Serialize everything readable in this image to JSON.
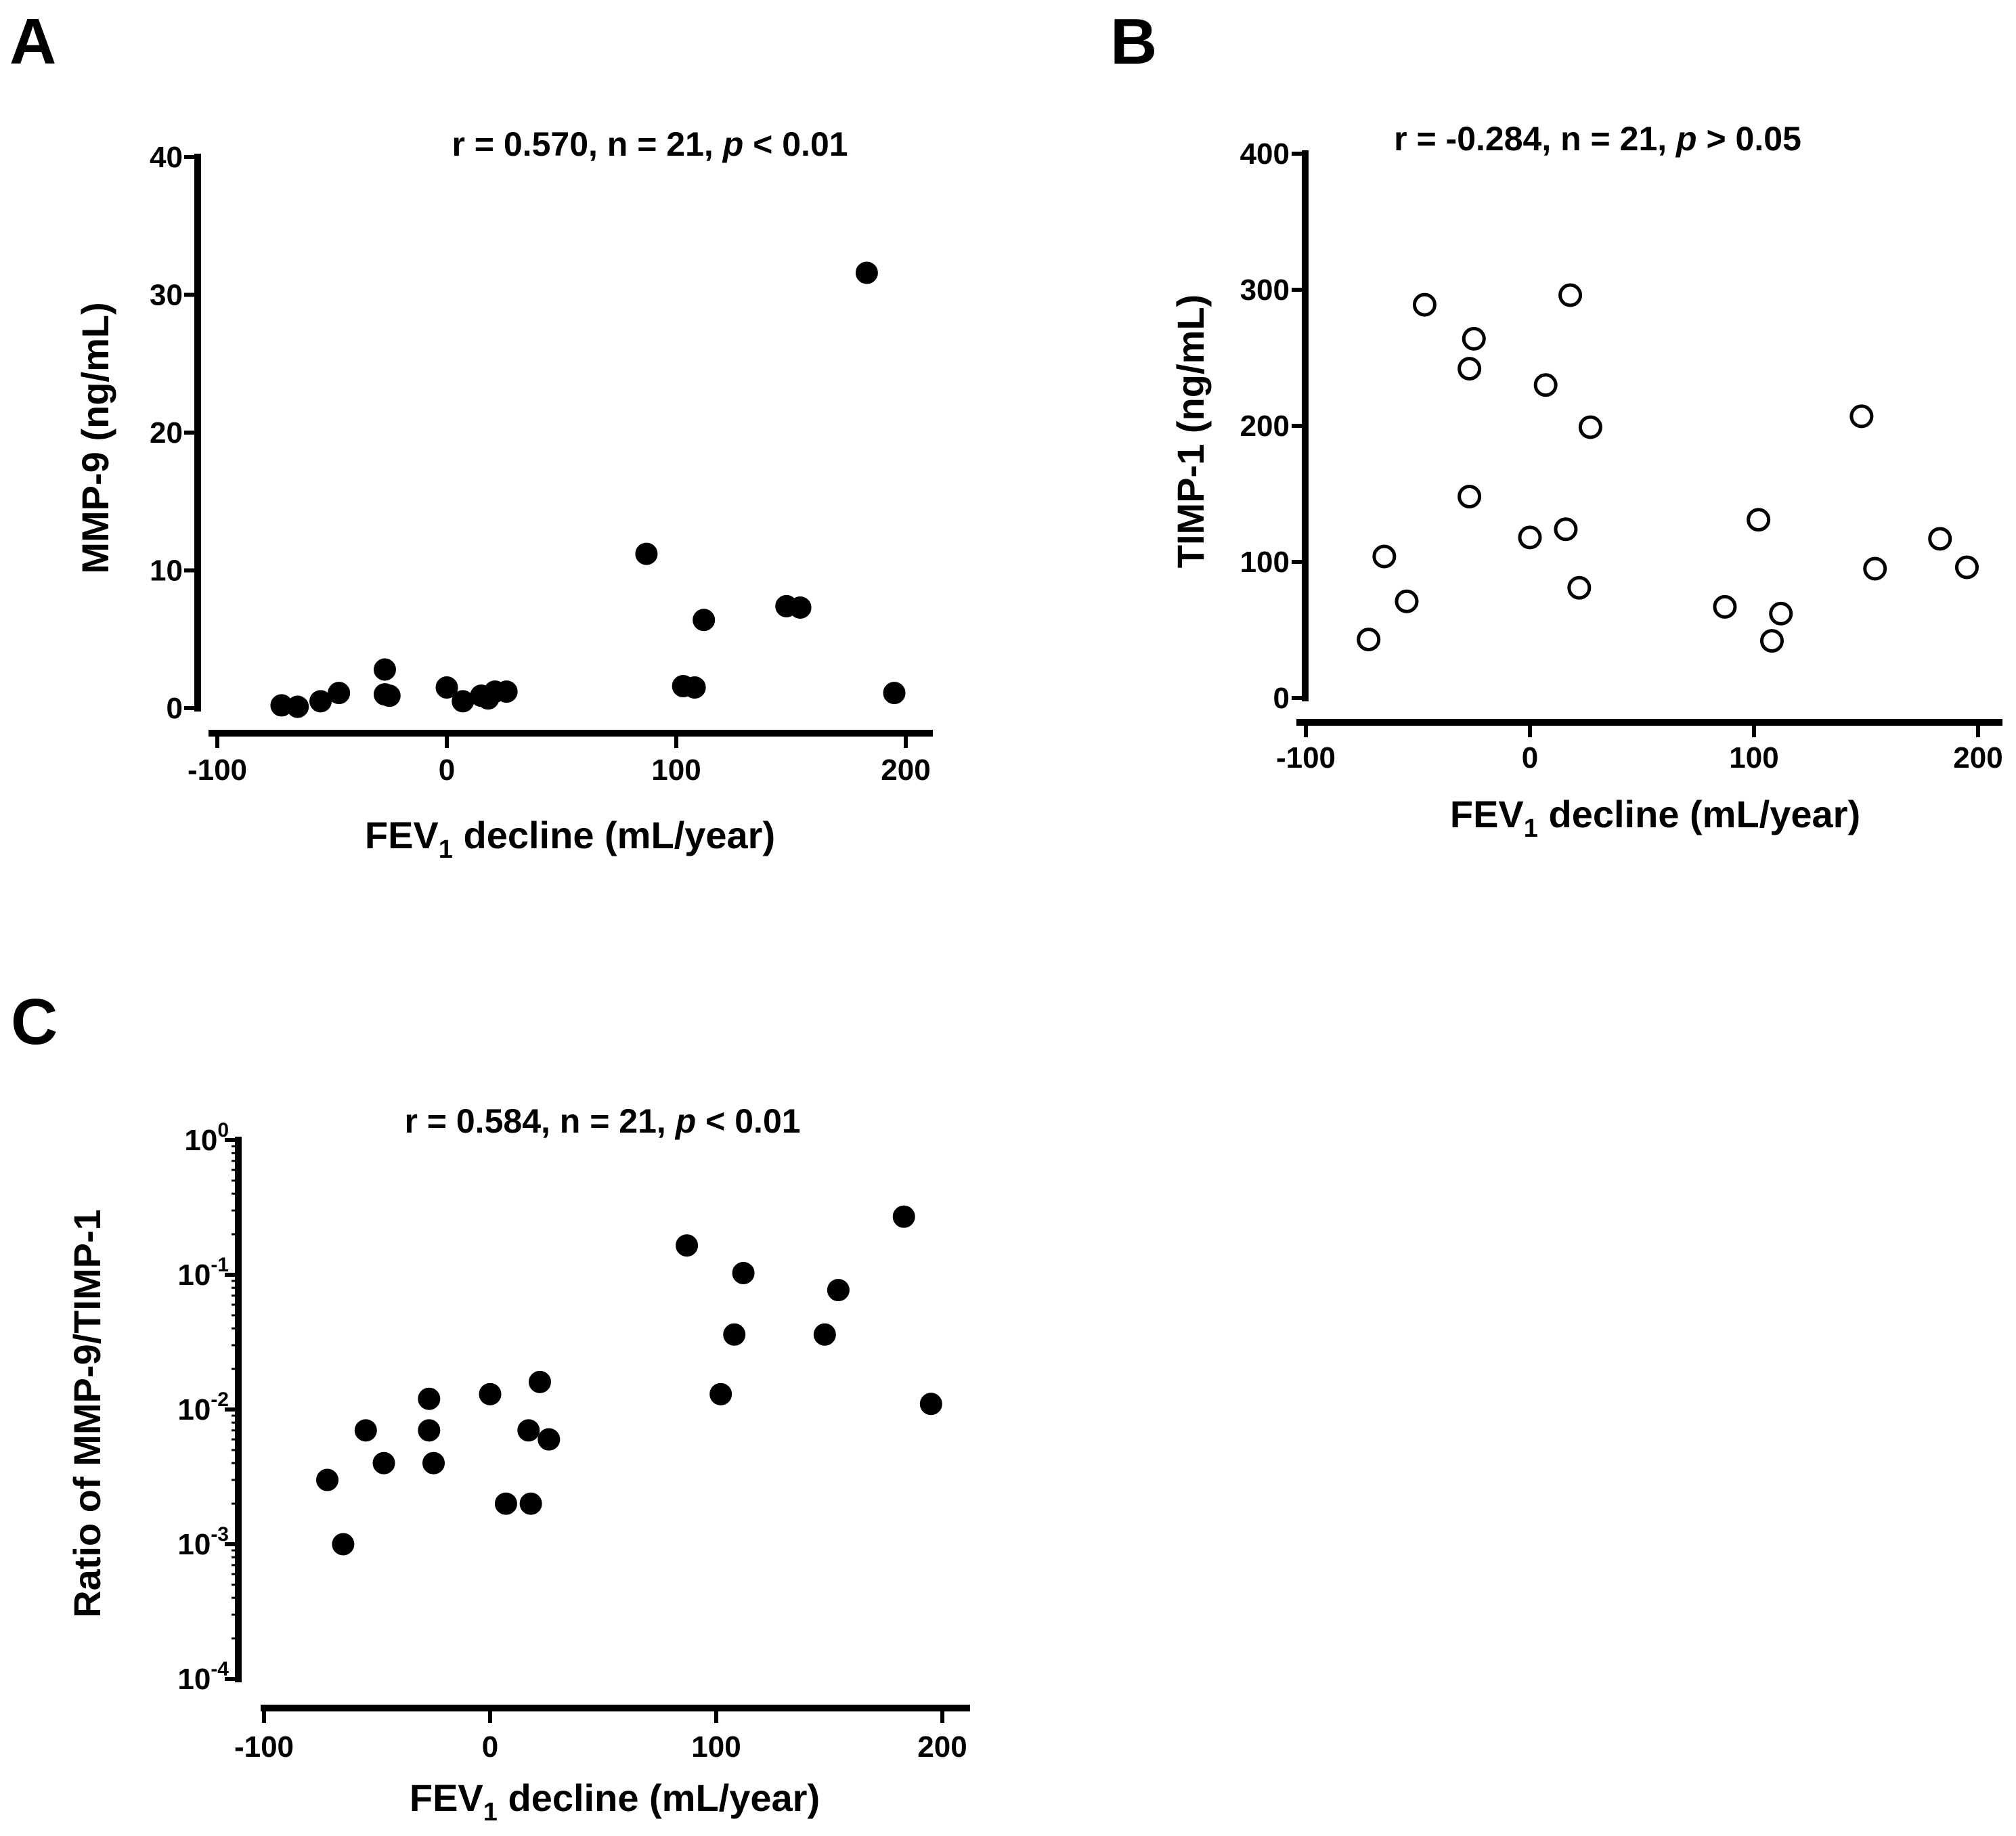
{
  "chart_data": [
    {
      "panel": "A",
      "type": "scatter",
      "title": "",
      "stat": {
        "prefix": "r = 0.570, n = 21, ",
        "italic": "p",
        "suffix": " < 0.01"
      },
      "xlabel": {
        "main": "FEV",
        "sub": "1",
        "rest": " decline (mL/year)"
      },
      "ylabel": "MMP-9 (ng/mL)",
      "xlim": [
        -100,
        210
      ],
      "ylim": [
        0,
        40
      ],
      "xticks": [
        -100,
        0,
        100,
        200
      ],
      "yticks": [
        0,
        10,
        20,
        30,
        40
      ],
      "yscale": "linear",
      "marker": "filled-circle",
      "points": [
        {
          "x": -72,
          "y": 0.2
        },
        {
          "x": -65,
          "y": 0.1
        },
        {
          "x": -55,
          "y": 0.5
        },
        {
          "x": -47,
          "y": 1.1
        },
        {
          "x": -27,
          "y": 2.8
        },
        {
          "x": -27,
          "y": 1.0
        },
        {
          "x": -25,
          "y": 0.9
        },
        {
          "x": 0,
          "y": 1.5
        },
        {
          "x": 7,
          "y": 0.5
        },
        {
          "x": 15,
          "y": 0.9
        },
        {
          "x": 18,
          "y": 0.7
        },
        {
          "x": 21,
          "y": 1.2
        },
        {
          "x": 26,
          "y": 1.2
        },
        {
          "x": 87,
          "y": 11.2
        },
        {
          "x": 103,
          "y": 1.6
        },
        {
          "x": 108,
          "y": 1.5
        },
        {
          "x": 112,
          "y": 6.4
        },
        {
          "x": 148,
          "y": 7.4
        },
        {
          "x": 154,
          "y": 7.3
        },
        {
          "x": 183,
          "y": 31.6
        },
        {
          "x": 195,
          "y": 1.1
        }
      ]
    },
    {
      "panel": "B",
      "type": "scatter",
      "title": "",
      "stat": {
        "prefix": "r = -0.284, n = 21, ",
        "italic": "p",
        "suffix": " > 0.05"
      },
      "xlabel": {
        "main": "FEV",
        "sub": "1",
        "rest": " decline (mL/year)"
      },
      "ylabel": "TIMP-1 (ng/mL)",
      "xlim": [
        -100,
        210
      ],
      "ylim": [
        0,
        400
      ],
      "xticks": [
        -100,
        0,
        100,
        200
      ],
      "yticks": [
        0,
        100,
        200,
        300,
        400
      ],
      "yscale": "linear",
      "marker": "open-circle",
      "points": [
        {
          "x": -72,
          "y": 43
        },
        {
          "x": -65,
          "y": 104
        },
        {
          "x": -55,
          "y": 71
        },
        {
          "x": -47,
          "y": 289
        },
        {
          "x": -27,
          "y": 242
        },
        {
          "x": -27,
          "y": 148
        },
        {
          "x": -25,
          "y": 264
        },
        {
          "x": 0,
          "y": 118
        },
        {
          "x": 7,
          "y": 230
        },
        {
          "x": 16,
          "y": 124
        },
        {
          "x": 18,
          "y": 296
        },
        {
          "x": 22,
          "y": 81
        },
        {
          "x": 27,
          "y": 199
        },
        {
          "x": 87,
          "y": 67
        },
        {
          "x": 102,
          "y": 131
        },
        {
          "x": 108,
          "y": 42
        },
        {
          "x": 112,
          "y": 62
        },
        {
          "x": 148,
          "y": 207
        },
        {
          "x": 154,
          "y": 95
        },
        {
          "x": 183,
          "y": 117
        },
        {
          "x": 195,
          "y": 96
        }
      ]
    },
    {
      "panel": "C",
      "type": "scatter",
      "title": "",
      "stat": {
        "prefix": "r = 0.584, n = 21, ",
        "italic": "p",
        "suffix": " < 0.01"
      },
      "xlabel": {
        "main": "FEV",
        "sub": "1",
        "rest": " decline (mL/year)"
      },
      "ylabel": "Ratio of MMP-9/TIMP-1",
      "xlim": [
        -100,
        210
      ],
      "ylim": [
        0.0001,
        1
      ],
      "xticks": [
        -100,
        0,
        100,
        200
      ],
      "yticks": [
        {
          "value": 1,
          "base": "10",
          "exp": "0"
        },
        {
          "value": 0.1,
          "base": "10",
          "exp": "-1"
        },
        {
          "value": 0.01,
          "base": "10",
          "exp": "-2"
        },
        {
          "value": 0.001,
          "base": "10",
          "exp": "-3"
        },
        {
          "value": 0.0001,
          "base": "10",
          "exp": "-4"
        }
      ],
      "yscale": "log",
      "marker": "filled-circle",
      "points": [
        {
          "x": -72,
          "y": 0.003
        },
        {
          "x": -65,
          "y": 0.001
        },
        {
          "x": -55,
          "y": 0.007
        },
        {
          "x": -47,
          "y": 0.004
        },
        {
          "x": -27,
          "y": 0.012
        },
        {
          "x": -27,
          "y": 0.007
        },
        {
          "x": -25,
          "y": 0.004
        },
        {
          "x": 0,
          "y": 0.013
        },
        {
          "x": 7,
          "y": 0.002
        },
        {
          "x": 17,
          "y": 0.007
        },
        {
          "x": 18,
          "y": 0.002
        },
        {
          "x": 22,
          "y": 0.016
        },
        {
          "x": 26,
          "y": 0.006
        },
        {
          "x": 87,
          "y": 0.165
        },
        {
          "x": 102,
          "y": 0.013
        },
        {
          "x": 108,
          "y": 0.036
        },
        {
          "x": 112,
          "y": 0.103
        },
        {
          "x": 148,
          "y": 0.036
        },
        {
          "x": 154,
          "y": 0.077
        },
        {
          "x": 183,
          "y": 0.27
        },
        {
          "x": 195,
          "y": 0.011
        }
      ]
    }
  ]
}
